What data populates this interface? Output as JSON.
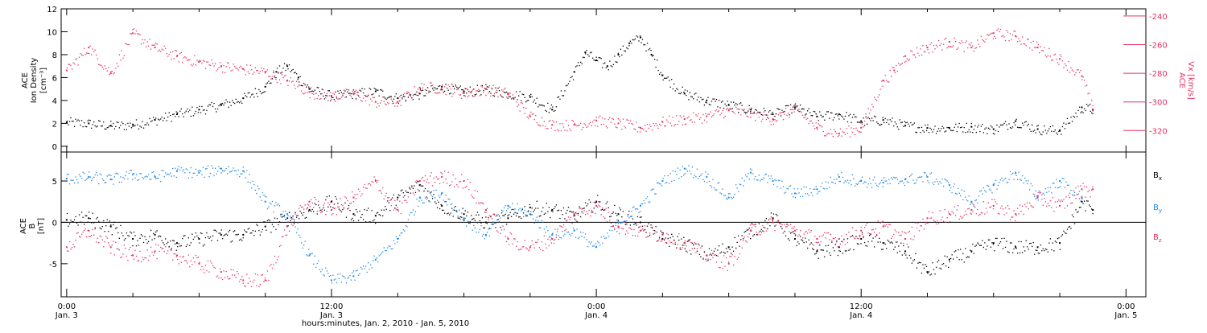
{
  "chart_data": [
    {
      "type": "scatter",
      "panel": "top",
      "left_axis": {
        "label_lines": [
          "ACE",
          "Ion Density",
          "[cm⁻³]"
        ],
        "ylim": [
          -0.5,
          12
        ],
        "ticks": [
          0,
          2,
          4,
          6,
          8,
          10,
          12
        ]
      },
      "right_axis": {
        "label_lines": [
          "ACE",
          "Vx [km/s]"
        ],
        "ylim": [
          -335,
          -235
        ],
        "ticks": [
          -240,
          -260,
          -280,
          -300,
          -320
        ],
        "color": "#e8305f"
      },
      "series": [
        {
          "axis": "left",
          "color": "#000000",
          "x": [
            0,
            1,
            2,
            3,
            4,
            5,
            6,
            7,
            8,
            9,
            9.5,
            10,
            10.5,
            11,
            12,
            13,
            14,
            15,
            16,
            17,
            18,
            19,
            20,
            21,
            22,
            23,
            23.5,
            24,
            24.5,
            25,
            25.5,
            26,
            26.5,
            27,
            28,
            29,
            30,
            31,
            32,
            33,
            34,
            35,
            36,
            37,
            38,
            39,
            40,
            41,
            42,
            43,
            44,
            45,
            46,
            46.5
          ],
          "y": [
            2.1,
            2.0,
            1.8,
            1.9,
            2.3,
            2.8,
            3.2,
            3.6,
            4.2,
            5.2,
            6.5,
            7.0,
            6.0,
            5.0,
            4.4,
            4.6,
            4.8,
            4.2,
            4.6,
            5.2,
            4.8,
            5.0,
            4.6,
            4.3,
            3.2,
            6.5,
            8.2,
            7.5,
            7.0,
            8.0,
            9.0,
            9.5,
            8.0,
            6.2,
            4.6,
            4.0,
            3.6,
            3.2,
            2.8,
            3.4,
            2.6,
            2.8,
            2.2,
            2.3,
            1.8,
            1.6,
            1.6,
            1.7,
            1.5,
            2.2,
            1.5,
            1.4,
            3.4,
            3.2
          ]
        },
        {
          "axis": "right",
          "color": "#e8305f",
          "x": [
            0,
            1,
            2,
            3,
            4,
            5,
            6,
            7,
            8,
            9,
            10,
            11,
            12,
            13,
            14,
            15,
            16,
            17,
            18,
            19,
            20,
            21,
            22,
            23,
            24,
            25,
            26,
            27,
            28,
            29,
            30,
            31,
            32,
            33,
            34,
            35,
            36,
            37,
            37.5,
            38,
            39,
            40,
            41,
            42,
            43,
            44,
            45,
            46,
            46.5
          ],
          "y": [
            -278,
            -262,
            -280,
            -252,
            -262,
            -268,
            -272,
            -275,
            -277,
            -279,
            -285,
            -293,
            -296,
            -294,
            -300,
            -300,
            -290,
            -290,
            -294,
            -291,
            -294,
            -310,
            -316,
            -316,
            -313,
            -315,
            -318,
            -314,
            -312,
            -310,
            -306,
            -308,
            -312,
            -305,
            -318,
            -322,
            -318,
            -285,
            -278,
            -268,
            -262,
            -258,
            -262,
            -252,
            -254,
            -262,
            -270,
            -282,
            -306
          ]
        }
      ]
    },
    {
      "type": "scatter",
      "panel": "bottom",
      "left_axis": {
        "label_lines": [
          "ACE",
          "B",
          "[nT]"
        ],
        "ylim": [
          -9,
          8.5
        ],
        "ticks": [
          -5,
          0,
          5
        ]
      },
      "series": [
        {
          "name": "Bx",
          "color": "#000000",
          "x": [
            0,
            1,
            2,
            3,
            4,
            5,
            6,
            7,
            8,
            9,
            10,
            11,
            12,
            13,
            14,
            15,
            16,
            17,
            18,
            19,
            20,
            21,
            22,
            23,
            24,
            25,
            26,
            27,
            28,
            29,
            30,
            31,
            32,
            33,
            34,
            35,
            36,
            37,
            38,
            39,
            40,
            41,
            42,
            43,
            44,
            45,
            46,
            46.5
          ],
          "y": [
            0.3,
            0.5,
            -0.5,
            -2,
            -1.5,
            -2.5,
            -2,
            -1.5,
            -1.5,
            -0.5,
            0.5,
            1.5,
            2.5,
            1,
            0.8,
            3,
            4.5,
            2,
            1,
            0,
            0.5,
            1.8,
            1.5,
            0.8,
            2.5,
            1,
            0,
            -2,
            -2.5,
            -4,
            -3,
            -1,
            0.5,
            -2,
            -3.5,
            -3,
            -2,
            -2.5,
            -3.5,
            -6,
            -4.5,
            -3.5,
            -2.5,
            -3,
            -3,
            -2.5,
            2.5,
            1.5
          ]
        },
        {
          "name": "By",
          "color": "#1e88e5",
          "x": [
            0,
            1,
            2,
            3,
            4,
            5,
            6,
            7,
            8,
            9,
            10,
            11,
            12,
            13,
            14,
            15,
            16,
            17,
            18,
            19,
            20,
            21,
            22,
            23,
            24,
            25,
            26,
            27,
            28,
            29,
            30,
            31,
            32,
            33,
            34,
            35,
            36,
            37,
            38,
            39,
            40,
            41,
            42,
            43,
            44,
            45,
            46
          ],
          "y": [
            5.3,
            5.5,
            5.2,
            5.8,
            5.5,
            6.2,
            6,
            6.5,
            6.2,
            2.5,
            1,
            -4,
            -7,
            -6.5,
            -4.5,
            -2,
            3,
            3.5,
            0.5,
            -1.5,
            2,
            1,
            -1.5,
            -1,
            -3,
            0,
            2,
            5,
            6.5,
            5.5,
            3,
            6,
            5,
            3.5,
            4,
            5.5,
            5,
            4.8,
            5.2,
            5.5,
            4.5,
            2.5,
            4.5,
            6,
            3.2,
            5,
            3
          ]
        },
        {
          "name": "Bz",
          "color": "#e8305f",
          "x": [
            0,
            1,
            2,
            3,
            4,
            5,
            6,
            7,
            8,
            9,
            10,
            11,
            12,
            13,
            14,
            15,
            16,
            17,
            18,
            19,
            20,
            21,
            22,
            23,
            24,
            25,
            26,
            27,
            28,
            29,
            30,
            31,
            32,
            33,
            34,
            35,
            36,
            37,
            38,
            39,
            40,
            41,
            42,
            43,
            44,
            45,
            46,
            46.5
          ],
          "y": [
            -3,
            -1,
            -3,
            -4,
            -3.5,
            -4,
            -5,
            -6,
            -7,
            -7,
            -0.5,
            2.5,
            1.5,
            3,
            5,
            1.5,
            5,
            5.5,
            5,
            1.5,
            -2,
            -3,
            -2,
            1,
            2,
            -0.5,
            -1,
            -1.5,
            -2.5,
            -4,
            -5,
            -1,
            0,
            -1,
            -2,
            -2,
            -1,
            -0.5,
            -2,
            0.5,
            1,
            1.5,
            2,
            1,
            3,
            2,
            4,
            4
          ]
        }
      ],
      "legend": [
        "Bx",
        "By",
        "Bz"
      ]
    }
  ],
  "x_axis": {
    "range_hours": [
      -0.25,
      48.9
    ],
    "major_ticks": [
      {
        "x": 0,
        "time": "0:00",
        "day": "Jan. 3"
      },
      {
        "x": 12,
        "time": "12:00",
        "day": "Jan. 3"
      },
      {
        "x": 24,
        "time": "0:00",
        "day": "Jan. 4"
      },
      {
        "x": 36,
        "time": "12:00",
        "day": "Jan. 4"
      },
      {
        "x": 48,
        "time": "0:00",
        "day": "Jan. 5"
      }
    ],
    "title": "hours:minutes, Jan.  2, 2010 - Jan.  5, 2010"
  },
  "legend_labels": {
    "bx": "B",
    "bx_sub": "x",
    "by": "B",
    "by_sub": "y",
    "bz": "B",
    "bz_sub": "z"
  },
  "colors": {
    "black": "#000000",
    "red": "#e8305f",
    "blue": "#1e88e5"
  }
}
